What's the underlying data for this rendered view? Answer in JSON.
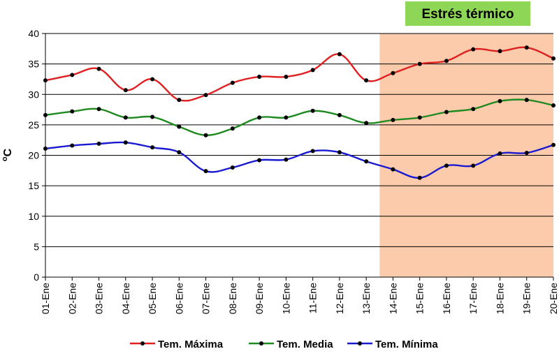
{
  "chart_data": {
    "type": "line",
    "title": "",
    "ylabel": "°C",
    "ylabel_superscript": "o",
    "ylabel_main": "C",
    "ylim": [
      0,
      40
    ],
    "yticks": [
      0,
      5,
      10,
      15,
      20,
      25,
      30,
      35,
      40
    ],
    "grid": "horizontal",
    "legend_position": "bottom",
    "categories": [
      "01-Ene",
      "02-Ene",
      "03-Ene",
      "04-Ene",
      "05-Ene",
      "06-Ene",
      "07-Ene",
      "08-Ene",
      "09-Ene",
      "10-Ene",
      "11-Ene",
      "12-Ene",
      "13-Ene",
      "14-Ene",
      "15-Ene",
      "16-Ene",
      "17-Ene",
      "18-Ene",
      "19-Ene",
      "20-Ene"
    ],
    "series": [
      {
        "name": "Tem. Máxima",
        "color": "#e02020",
        "values": [
          32.3,
          33.2,
          34.2,
          30.7,
          32.5,
          29.1,
          29.9,
          31.9,
          32.9,
          32.9,
          34.0,
          36.6,
          32.3,
          33.5,
          35.0,
          35.5,
          37.4,
          37.1,
          37.7,
          35.9
        ]
      },
      {
        "name": "Tem. Media",
        "color": "#1f8a1f",
        "values": [
          26.6,
          27.2,
          27.6,
          26.2,
          26.3,
          24.7,
          23.3,
          24.4,
          26.2,
          26.2,
          27.3,
          26.6,
          25.3,
          25.8,
          26.2,
          27.1,
          27.6,
          28.9,
          29.1,
          28.2
        ]
      },
      {
        "name": "Tem. Mínima",
        "color": "#1a1ad0",
        "values": [
          21.1,
          21.6,
          21.9,
          22.1,
          21.3,
          20.5,
          17.4,
          18.0,
          19.2,
          19.3,
          20.7,
          20.5,
          19.0,
          17.7,
          16.3,
          18.3,
          18.3,
          20.3,
          20.4,
          21.7
        ]
      }
    ],
    "annotation": {
      "label": "Estrés térmico",
      "from_category": "13-Ene",
      "to_category": "20-Ene",
      "region_color": "#fbcbac",
      "badge_color": "#8ed656"
    },
    "marker_color": "#000000",
    "grid_color": "#000000"
  }
}
